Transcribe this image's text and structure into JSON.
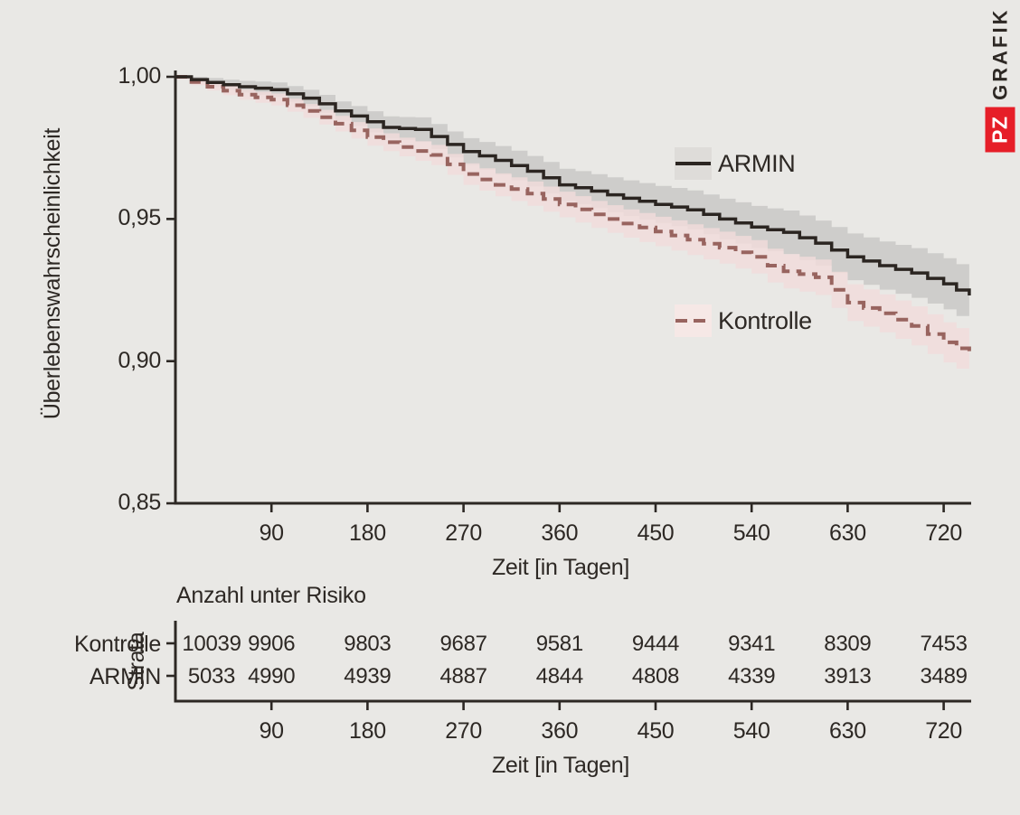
{
  "logo": {
    "badge": "PZ",
    "name": "GRAFIK",
    "badge_color": "#e61e28"
  },
  "colors": {
    "background": "#e9e8e5",
    "text": "#2d2824",
    "axis": "#2d2824",
    "armin_line": "#2b2521",
    "armin_band": "#cccbc9",
    "kontrolle_line": "#98645f",
    "kontrolle_band": "#f1dcda",
    "logo_red": "#e61e28"
  },
  "chart_data": {
    "type": "line",
    "subtype": "kaplan-meier-survival-with-confidence-bands",
    "title": "",
    "ylabel": "Überlebenswahrscheinlichkeit",
    "xlabel": "Zeit [in Tagen]",
    "xlabel_bottom": "Zeit [in Tagen]",
    "ylim": [
      0.85,
      1.0
    ],
    "xlim": [
      0,
      744
    ],
    "grid": false,
    "legend_position": "inside-right",
    "yticks": {
      "values": [
        1.0,
        0.95,
        0.9,
        0.85
      ],
      "labels": [
        "1,00",
        "0,95",
        "0,90",
        "0,85"
      ]
    },
    "xticks": {
      "values": [
        90,
        180,
        270,
        360,
        450,
        540,
        630,
        720
      ],
      "labels": [
        "90",
        "180",
        "270",
        "360",
        "450",
        "540",
        "630",
        "720"
      ]
    },
    "series": [
      {
        "name": "ARMIN",
        "style": "solid",
        "color": "#2b2521",
        "band_color": "#cccbc9",
        "x": [
          0,
          15,
          30,
          45,
          60,
          75,
          90,
          105,
          120,
          135,
          150,
          165,
          180,
          195,
          210,
          225,
          240,
          255,
          270,
          285,
          300,
          315,
          330,
          345,
          360,
          375,
          390,
          405,
          420,
          435,
          450,
          465,
          480,
          495,
          510,
          525,
          540,
          555,
          570,
          585,
          600,
          615,
          630,
          645,
          660,
          675,
          690,
          705,
          720,
          732,
          744
        ],
        "y": [
          1.0,
          0.999,
          0.998,
          0.9972,
          0.9965,
          0.996,
          0.9955,
          0.994,
          0.9925,
          0.9905,
          0.988,
          0.9862,
          0.9842,
          0.9822,
          0.9818,
          0.9815,
          0.979,
          0.9762,
          0.9737,
          0.9722,
          0.9706,
          0.9688,
          0.9668,
          0.9645,
          0.962,
          0.961,
          0.9598,
          0.9585,
          0.9573,
          0.9562,
          0.9551,
          0.9542,
          0.9532,
          0.9516,
          0.95,
          0.9486,
          0.9472,
          0.9462,
          0.9453,
          0.9434,
          0.9415,
          0.9391,
          0.9367,
          0.9352,
          0.9336,
          0.9323,
          0.931,
          0.9291,
          0.9272,
          0.925,
          0.9231
        ],
        "ci_half_width_start": 0.0008,
        "ci_half_width_end": 0.0092
      },
      {
        "name": "Kontrolle",
        "style": "dashed",
        "color": "#98645f",
        "band_color": "#f1dcda",
        "x": [
          0,
          15,
          30,
          45,
          60,
          75,
          90,
          105,
          120,
          135,
          150,
          165,
          180,
          195,
          210,
          225,
          240,
          255,
          270,
          285,
          300,
          315,
          330,
          345,
          360,
          375,
          390,
          405,
          420,
          435,
          450,
          465,
          480,
          495,
          510,
          525,
          540,
          555,
          570,
          585,
          600,
          615,
          630,
          645,
          660,
          675,
          690,
          705,
          720,
          732,
          744
        ],
        "y": [
          1.0,
          0.9982,
          0.9965,
          0.9951,
          0.9937,
          0.9928,
          0.992,
          0.99,
          0.988,
          0.9858,
          0.9835,
          0.9812,
          0.9788,
          0.977,
          0.9753,
          0.9739,
          0.9725,
          0.9692,
          0.9658,
          0.9639,
          0.962,
          0.9605,
          0.9589,
          0.957,
          0.9551,
          0.9534,
          0.9516,
          0.95,
          0.9484,
          0.947,
          0.9456,
          0.9442,
          0.9427,
          0.9413,
          0.9399,
          0.9383,
          0.9367,
          0.9336,
          0.9316,
          0.9306,
          0.9295,
          0.9251,
          0.9206,
          0.9187,
          0.9168,
          0.9146,
          0.9124,
          0.9095,
          0.9066,
          0.9045,
          0.9025
        ],
        "ci_half_width_start": 0.0008,
        "ci_half_width_end": 0.0072
      }
    ],
    "risk_table": {
      "title": "Anzahl unter Risiko",
      "strata_label": "Strata",
      "x_positions": [
        0,
        90,
        180,
        270,
        360,
        450,
        540,
        630,
        720
      ],
      "rows": [
        {
          "label": "Kontrolle",
          "values": [
            "10039",
            "9906",
            "9803",
            "9687",
            "9581",
            "9444",
            "9341",
            "8309",
            "7453"
          ]
        },
        {
          "label": "ARMIN",
          "values": [
            "5033",
            "4990",
            "4939",
            "4887",
            "4844",
            "4808",
            "4339",
            "3913",
            "3489"
          ]
        }
      ]
    }
  }
}
